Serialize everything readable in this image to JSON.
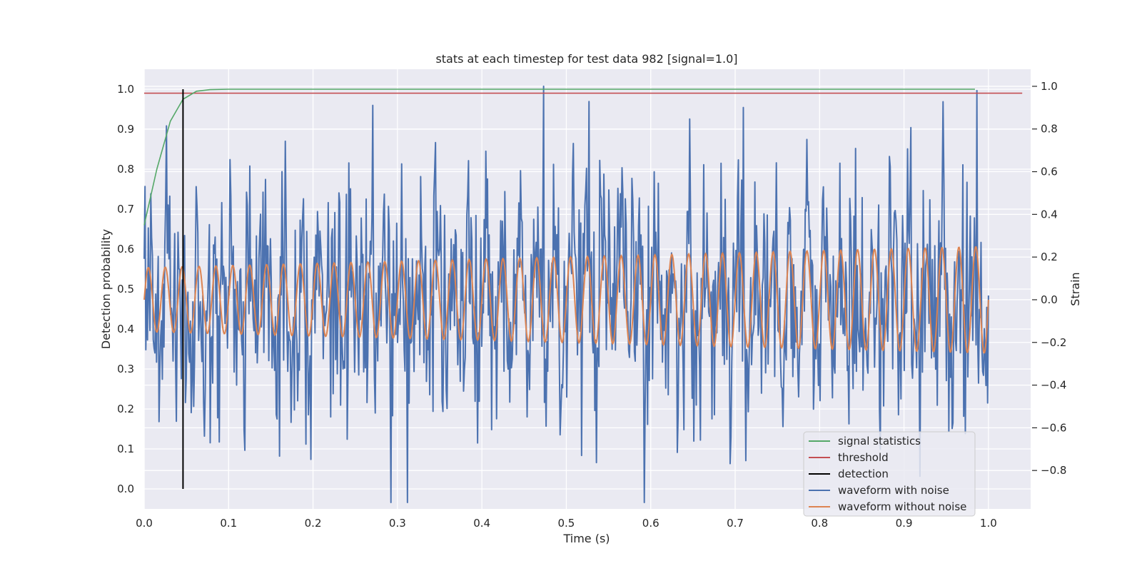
{
  "chart_data": {
    "type": "line",
    "title": "stats at each timestep for test data 982 [signal=1.0]",
    "xlabel": "Time (s)",
    "ylabel": "Detection probability",
    "y2label": "Strain",
    "xlim": [
      0.0,
      1.05
    ],
    "ylim": [
      -0.05,
      1.05
    ],
    "y2lim": [
      -0.98,
      1.08
    ],
    "x_ticks": [
      "0.0",
      "0.1",
      "0.2",
      "0.3",
      "0.4",
      "0.5",
      "0.6",
      "0.7",
      "0.8",
      "0.9",
      "1.0"
    ],
    "y_ticks": [
      "0.0",
      "0.1",
      "0.2",
      "0.3",
      "0.4",
      "0.5",
      "0.6",
      "0.7",
      "0.8",
      "0.9",
      "1.0"
    ],
    "y2_ticks": [
      "−0.8",
      "−0.6",
      "−0.4",
      "−0.2",
      "0.0",
      "0.2",
      "0.4",
      "0.6",
      "0.8",
      "1.0"
    ],
    "grid": true,
    "legend_position": "lower-right",
    "background": "#eaeaf2",
    "series": [
      {
        "name": "signal statistics",
        "color": "#55a868",
        "axis": "left",
        "x": [
          0.0,
          0.015,
          0.031,
          0.046,
          0.062,
          0.078,
          0.1,
          0.2,
          0.4,
          0.6,
          0.8,
          0.984
        ],
        "y": [
          0.66,
          0.8,
          0.92,
          0.975,
          0.995,
          0.999,
          1.0,
          1.0,
          1.0,
          1.0,
          1.0,
          1.0
        ]
      },
      {
        "name": "threshold",
        "color": "#c44e52",
        "axis": "left",
        "x": [
          0.0,
          1.04
        ],
        "y": [
          0.99,
          0.99
        ]
      },
      {
        "name": "detection",
        "color": "#000000",
        "axis": "left",
        "x": [
          0.046,
          0.046
        ],
        "y": [
          0.0,
          1.0
        ]
      },
      {
        "name": "waveform with noise",
        "color": "#4c72b0",
        "axis": "right",
        "sample_count": 1024,
        "x_range": [
          0.0,
          1.0
        ],
        "y_range_observed": [
          -0.95,
          1.0
        ],
        "peak": {
          "x": 0.473,
          "y": 1.0
        },
        "trough": {
          "x": 0.292,
          "y": -0.95
        }
      },
      {
        "name": "waveform without noise",
        "color": "#dd8452",
        "axis": "right",
        "x_range": [
          0.0,
          1.0
        ],
        "amplitude_start": 0.15,
        "amplitude_end": 0.25,
        "cycles": 50
      }
    ]
  }
}
